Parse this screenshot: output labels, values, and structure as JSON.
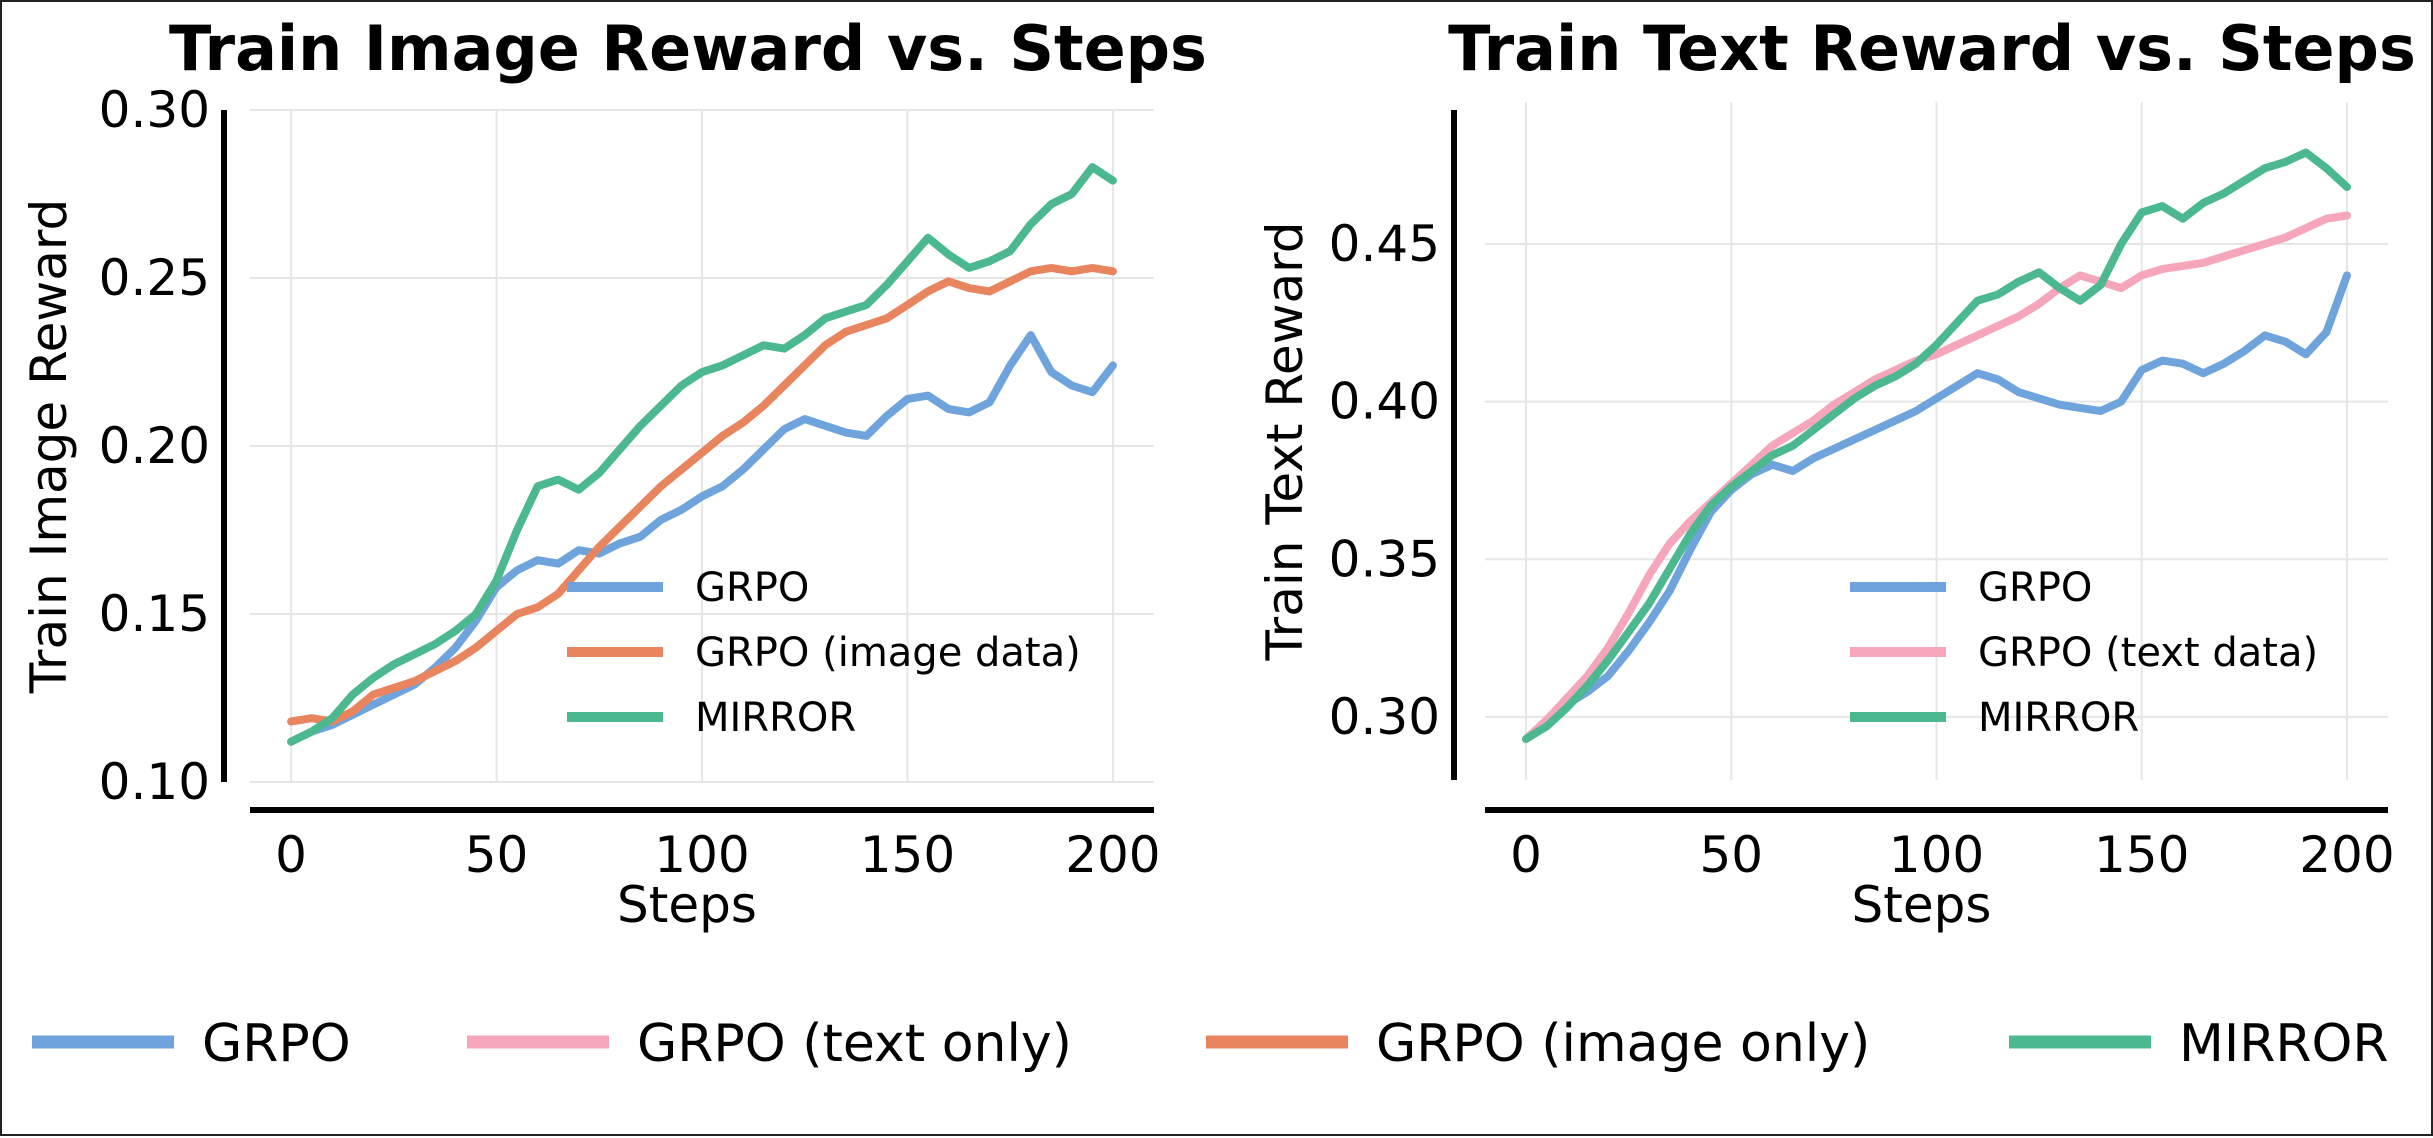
{
  "chart_data": [
    {
      "type": "line",
      "title": "Train Image Reward vs. Steps",
      "xlabel": "Steps",
      "ylabel": "Train Image Reward",
      "xlim": [
        -10,
        210
      ],
      "ylim": [
        0.1,
        0.3
      ],
      "xticks": [
        0,
        50,
        100,
        150,
        200
      ],
      "yticks": [
        0.1,
        0.15,
        0.2,
        0.25,
        0.3
      ],
      "xtick_labels": [
        "0",
        "50",
        "100",
        "150",
        "200"
      ],
      "ytick_labels": [
        "0.10",
        "0.15",
        "0.20",
        "0.25",
        "0.30"
      ],
      "grid": true,
      "legend_position": "lower-right",
      "series": [
        {
          "name": "GRPO",
          "color": "#6fa3dc",
          "x": [
            0,
            5,
            10,
            15,
            20,
            25,
            30,
            35,
            40,
            45,
            50,
            55,
            60,
            65,
            70,
            75,
            80,
            85,
            90,
            95,
            100,
            105,
            110,
            115,
            120,
            125,
            130,
            135,
            140,
            145,
            150,
            155,
            160,
            165,
            170,
            175,
            180,
            185,
            190,
            195,
            200
          ],
          "y": [
            0.112,
            0.115,
            0.117,
            0.12,
            0.123,
            0.126,
            0.129,
            0.134,
            0.14,
            0.148,
            0.158,
            0.163,
            0.166,
            0.165,
            0.169,
            0.168,
            0.171,
            0.173,
            0.178,
            0.181,
            0.185,
            0.188,
            0.193,
            0.199,
            0.205,
            0.208,
            0.206,
            0.204,
            0.203,
            0.209,
            0.214,
            0.215,
            0.211,
            0.21,
            0.213,
            0.224,
            0.233,
            0.222,
            0.218,
            0.216,
            0.224
          ]
        },
        {
          "name": "GRPO (image only)",
          "color": "#e8855e",
          "x": [
            0,
            5,
            10,
            15,
            20,
            25,
            30,
            35,
            40,
            45,
            50,
            55,
            60,
            65,
            70,
            75,
            80,
            85,
            90,
            95,
            100,
            105,
            110,
            115,
            120,
            125,
            130,
            135,
            140,
            145,
            150,
            155,
            160,
            165,
            170,
            175,
            180,
            185,
            190,
            195,
            200
          ],
          "y": [
            0.118,
            0.119,
            0.118,
            0.121,
            0.126,
            0.128,
            0.13,
            0.133,
            0.136,
            0.14,
            0.145,
            0.15,
            0.152,
            0.156,
            0.163,
            0.17,
            0.176,
            0.182,
            0.188,
            0.193,
            0.198,
            0.203,
            0.207,
            0.212,
            0.218,
            0.224,
            0.23,
            0.234,
            0.236,
            0.238,
            0.242,
            0.246,
            0.249,
            0.247,
            0.246,
            0.249,
            0.252,
            0.253,
            0.252,
            0.253,
            0.252
          ]
        },
        {
          "name": "MIRROR",
          "color": "#4cb890",
          "x": [
            0,
            5,
            10,
            15,
            20,
            25,
            30,
            35,
            40,
            45,
            50,
            55,
            60,
            65,
            70,
            75,
            80,
            85,
            90,
            95,
            100,
            105,
            110,
            115,
            120,
            125,
            130,
            135,
            140,
            145,
            150,
            155,
            160,
            165,
            170,
            175,
            180,
            185,
            190,
            195,
            200
          ],
          "y": [
            0.112,
            0.115,
            0.119,
            0.126,
            0.131,
            0.135,
            0.138,
            0.141,
            0.145,
            0.15,
            0.16,
            0.175,
            0.188,
            0.19,
            0.187,
            0.192,
            0.199,
            0.206,
            0.212,
            0.218,
            0.222,
            0.224,
            0.227,
            0.23,
            0.229,
            0.233,
            0.238,
            0.24,
            0.242,
            0.248,
            0.255,
            0.262,
            0.257,
            0.253,
            0.255,
            0.258,
            0.266,
            0.272,
            0.275,
            0.283,
            0.279
          ]
        }
      ]
    },
    {
      "type": "line",
      "title": "Train Text Reward vs. Steps",
      "xlabel": "Steps",
      "ylabel": "Train Text Reward",
      "xlim": [
        -10,
        210
      ],
      "ylim": [
        0.28,
        0.495
      ],
      "xticks": [
        0,
        50,
        100,
        150,
        200
      ],
      "yticks": [
        0.3,
        0.35,
        0.4,
        0.45
      ],
      "xtick_labels": [
        "0",
        "50",
        "100",
        "150",
        "200"
      ],
      "ytick_labels": [
        "0.30",
        "0.35",
        "0.40",
        "0.45"
      ],
      "grid": true,
      "legend_position": "lower-right",
      "series": [
        {
          "name": "GRPO",
          "color": "#6fa3dc",
          "x": [
            0,
            5,
            10,
            15,
            20,
            25,
            30,
            35,
            40,
            45,
            50,
            55,
            60,
            65,
            70,
            75,
            80,
            85,
            90,
            95,
            100,
            105,
            110,
            115,
            120,
            125,
            130,
            135,
            140,
            145,
            150,
            155,
            160,
            165,
            170,
            175,
            180,
            185,
            190,
            195,
            200
          ],
          "y": [
            0.293,
            0.298,
            0.304,
            0.308,
            0.313,
            0.321,
            0.33,
            0.34,
            0.353,
            0.365,
            0.372,
            0.377,
            0.38,
            0.378,
            0.382,
            0.385,
            0.388,
            0.391,
            0.394,
            0.397,
            0.401,
            0.405,
            0.409,
            0.407,
            0.403,
            0.401,
            0.399,
            0.398,
            0.397,
            0.4,
            0.41,
            0.413,
            0.412,
            0.409,
            0.412,
            0.416,
            0.421,
            0.419,
            0.415,
            0.422,
            0.44
          ]
        },
        {
          "name": "GRPO (text only)",
          "color": "#f6a6bb",
          "x": [
            0,
            5,
            10,
            15,
            20,
            25,
            30,
            35,
            40,
            45,
            50,
            55,
            60,
            65,
            70,
            75,
            80,
            85,
            90,
            95,
            100,
            105,
            110,
            115,
            120,
            125,
            130,
            135,
            140,
            145,
            150,
            155,
            160,
            165,
            170,
            175,
            180,
            185,
            190,
            195,
            200
          ],
          "y": [
            0.293,
            0.299,
            0.306,
            0.313,
            0.322,
            0.333,
            0.345,
            0.355,
            0.362,
            0.368,
            0.374,
            0.38,
            0.386,
            0.39,
            0.394,
            0.399,
            0.403,
            0.407,
            0.41,
            0.413,
            0.415,
            0.418,
            0.421,
            0.424,
            0.427,
            0.431,
            0.436,
            0.44,
            0.438,
            0.436,
            0.44,
            0.442,
            0.443,
            0.444,
            0.446,
            0.448,
            0.45,
            0.452,
            0.455,
            0.458,
            0.459
          ]
        },
        {
          "name": "MIRROR",
          "color": "#4cb890",
          "x": [
            0,
            5,
            10,
            15,
            20,
            25,
            30,
            35,
            40,
            45,
            50,
            55,
            60,
            65,
            70,
            75,
            80,
            85,
            90,
            95,
            100,
            105,
            110,
            115,
            120,
            125,
            130,
            135,
            140,
            145,
            150,
            155,
            160,
            165,
            170,
            175,
            180,
            185,
            190,
            195,
            200
          ],
          "y": [
            0.293,
            0.297,
            0.303,
            0.31,
            0.318,
            0.327,
            0.336,
            0.347,
            0.358,
            0.367,
            0.373,
            0.378,
            0.383,
            0.386,
            0.391,
            0.396,
            0.401,
            0.405,
            0.408,
            0.412,
            0.418,
            0.425,
            0.432,
            0.434,
            0.438,
            0.441,
            0.436,
            0.432,
            0.437,
            0.45,
            0.46,
            0.462,
            0.458,
            0.463,
            0.466,
            0.47,
            0.474,
            0.476,
            0.479,
            0.474,
            0.468
          ]
        }
      ]
    }
  ],
  "bottom_legend": [
    {
      "label": "GRPO",
      "color": "#6fa3dc"
    },
    {
      "label": "GRPO (text only)",
      "color": "#f6a6bb"
    },
    {
      "label": "GRPO (image only)",
      "color": "#e8855e"
    },
    {
      "label": "MIRROR",
      "color": "#4cb890"
    }
  ],
  "inner_legends": [
    [
      {
        "label": "GRPO",
        "color": "#6fa3dc"
      },
      {
        "label": "GRPO (image data)",
        "color": "#e8855e"
      },
      {
        "label": "MIRROR",
        "color": "#4cb890"
      }
    ],
    [
      {
        "label": "GRPO",
        "color": "#6fa3dc"
      },
      {
        "label": "GRPO (text data)",
        "color": "#f6a6bb"
      },
      {
        "label": "MIRROR",
        "color": "#4cb890"
      }
    ]
  ]
}
